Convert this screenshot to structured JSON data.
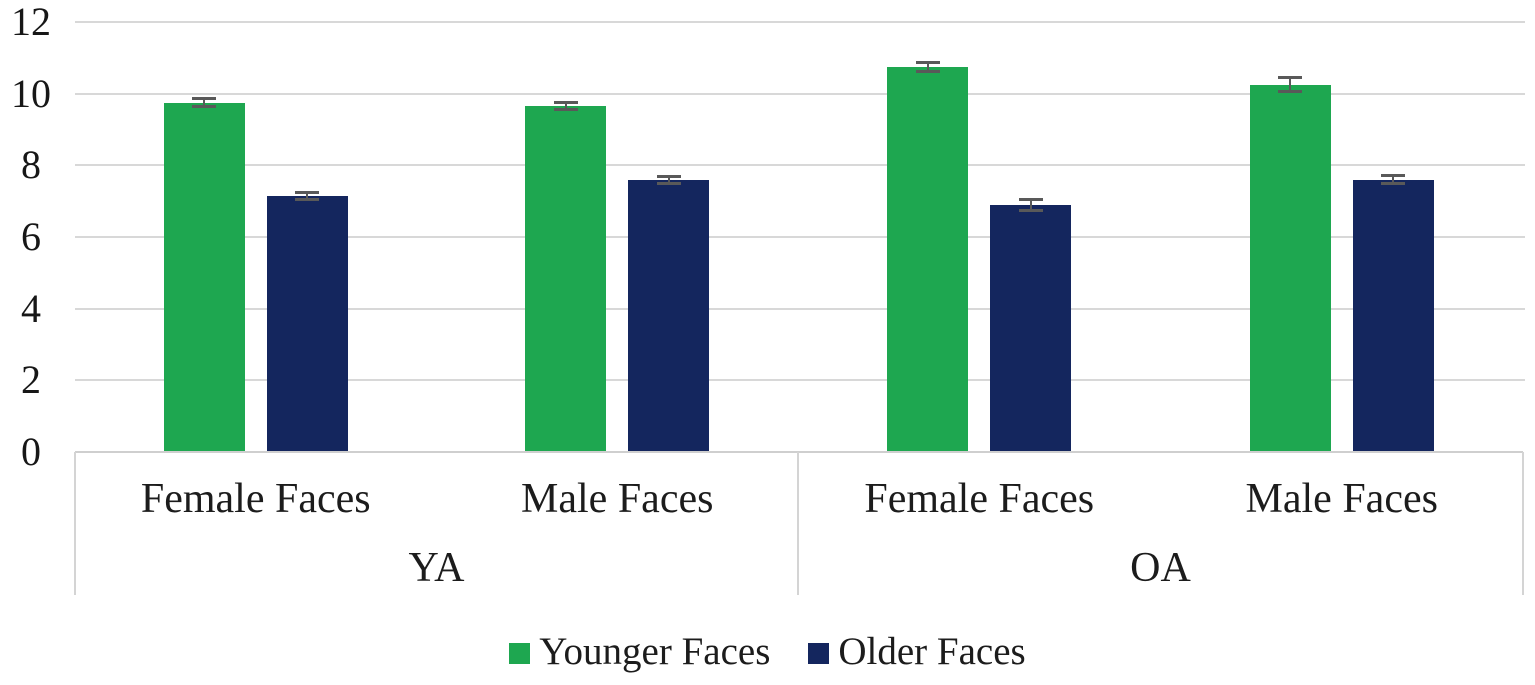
{
  "chart_data": {
    "type": "bar",
    "title": "",
    "xlabel": "",
    "ylabel": "",
    "ylim": [
      0,
      12
    ],
    "yticks": [
      0,
      2,
      4,
      6,
      8,
      10,
      12
    ],
    "grid": true,
    "legend_position": "bottom",
    "groups": [
      {
        "label": "YA",
        "categories": [
          "Female Faces",
          "Male Faces"
        ]
      },
      {
        "label": "OA",
        "categories": [
          "Female Faces",
          "Male Faces"
        ]
      }
    ],
    "categories": [
      "YA Female Faces",
      "YA Male Faces",
      "OA Female Faces",
      "OA Male Faces"
    ],
    "series": [
      {
        "name": "Younger Faces",
        "color": "#1ea750",
        "values": [
          9.75,
          9.65,
          10.75,
          10.25
        ],
        "errors": [
          0.12,
          0.1,
          0.12,
          0.2
        ]
      },
      {
        "name": "Older Faces",
        "color": "#14265e",
        "values": [
          7.15,
          7.6,
          6.9,
          7.6
        ],
        "errors": [
          0.1,
          0.1,
          0.15,
          0.12
        ]
      }
    ],
    "error_bar_color": "#595959",
    "gridline_color": "#d8d8d8",
    "axis_line_color": "#cfcfcf",
    "text_color": "#1c1c1c"
  }
}
